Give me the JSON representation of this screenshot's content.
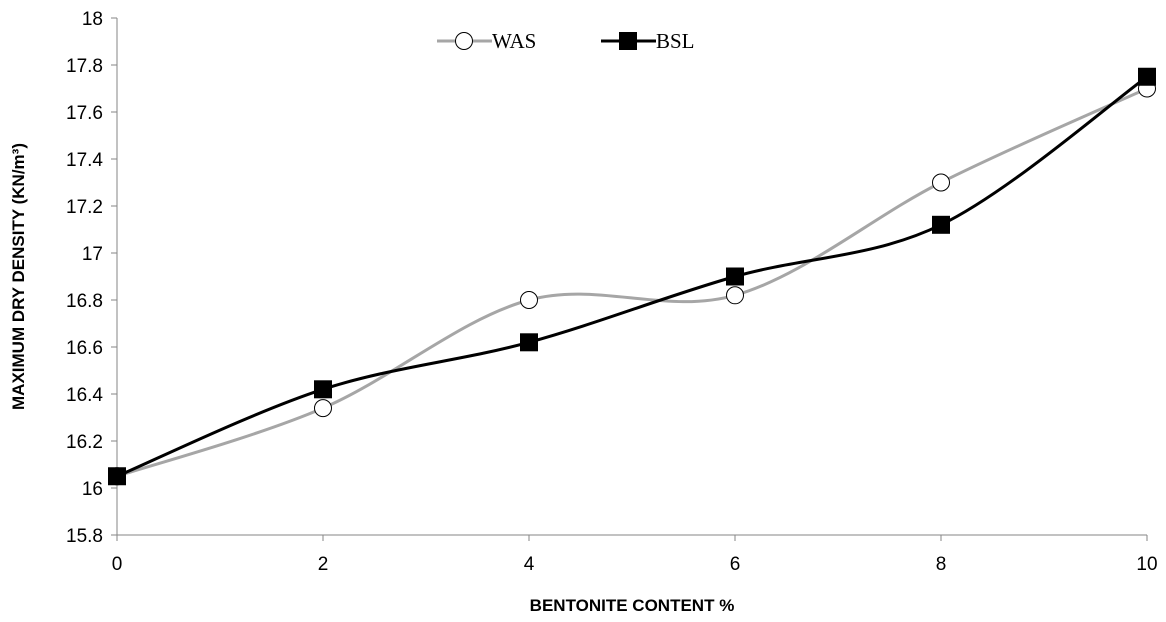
{
  "chart_data": {
    "type": "line",
    "title": "",
    "xlabel": "BENTONITE CONTENT %",
    "ylabel": "MAXIMUM DRY DENSITY (KN/m³)",
    "x": [
      0,
      2,
      4,
      6,
      8,
      10
    ],
    "xlim": [
      0,
      10
    ],
    "ylim": [
      15.8,
      18
    ],
    "x_ticks": [
      "0",
      "2",
      "4",
      "6",
      "8",
      "10"
    ],
    "y_ticks": [
      "15.8",
      "16",
      "16.2",
      "16.4",
      "16.6",
      "16.8",
      "17",
      "17.2",
      "17.4",
      "17.6",
      "17.8",
      "18"
    ],
    "grid": false,
    "smoothed": true,
    "legend_position": "top-center",
    "series": [
      {
        "name": "WAS",
        "marker": "open-circle",
        "color": "#a6a6a6",
        "values": [
          16.05,
          16.34,
          16.8,
          16.82,
          17.3,
          17.7
        ]
      },
      {
        "name": "BSL",
        "marker": "filled-square",
        "color": "#000000",
        "values": [
          16.05,
          16.42,
          16.62,
          16.9,
          17.12,
          17.75
        ]
      }
    ]
  }
}
